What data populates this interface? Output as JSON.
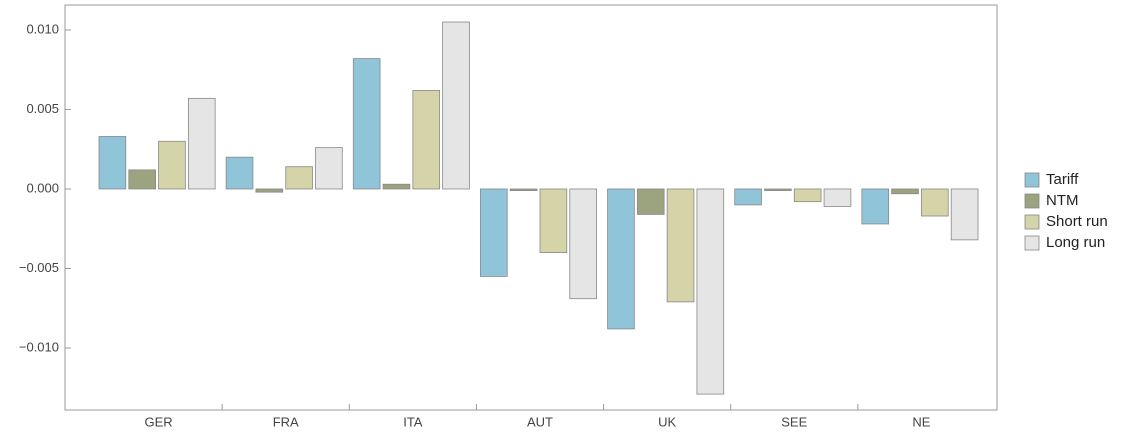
{
  "chart_data": {
    "type": "bar",
    "categories": [
      "GER",
      "FRA",
      "ITA",
      "AUT",
      "UK",
      "SEE",
      "NE"
    ],
    "series": [
      {
        "name": "Tariff",
        "color": "#8fc4d9",
        "values": [
          0.0033,
          0.002,
          0.0082,
          -0.0055,
          -0.0088,
          -0.001,
          -0.0022
        ]
      },
      {
        "name": "NTM",
        "color": "#9ca37f",
        "values": [
          0.0012,
          -0.0002,
          0.0003,
          -0.0001,
          -0.0016,
          -0.0001,
          -0.0003
        ]
      },
      {
        "name": "Short run",
        "color": "#d5d3a8",
        "values": [
          0.003,
          0.0014,
          0.0062,
          -0.004,
          -0.0071,
          -0.0008,
          -0.0017
        ]
      },
      {
        "name": "Long run",
        "color": "#e5e5e5",
        "values": [
          0.0057,
          0.0026,
          0.0105,
          -0.0069,
          -0.0129,
          -0.0011,
          -0.0032
        ]
      }
    ],
    "ylim": [
      -0.0139,
      0.01157
    ],
    "yticks": [
      {
        "value": -0.01,
        "label": "−0.010"
      },
      {
        "value": -0.005,
        "label": "−0.005"
      },
      {
        "value": 0,
        "label": "0.000"
      },
      {
        "value": 0.005,
        "label": "0.005"
      },
      {
        "value": 0.01,
        "label": "0.010"
      }
    ],
    "legend": "right"
  }
}
